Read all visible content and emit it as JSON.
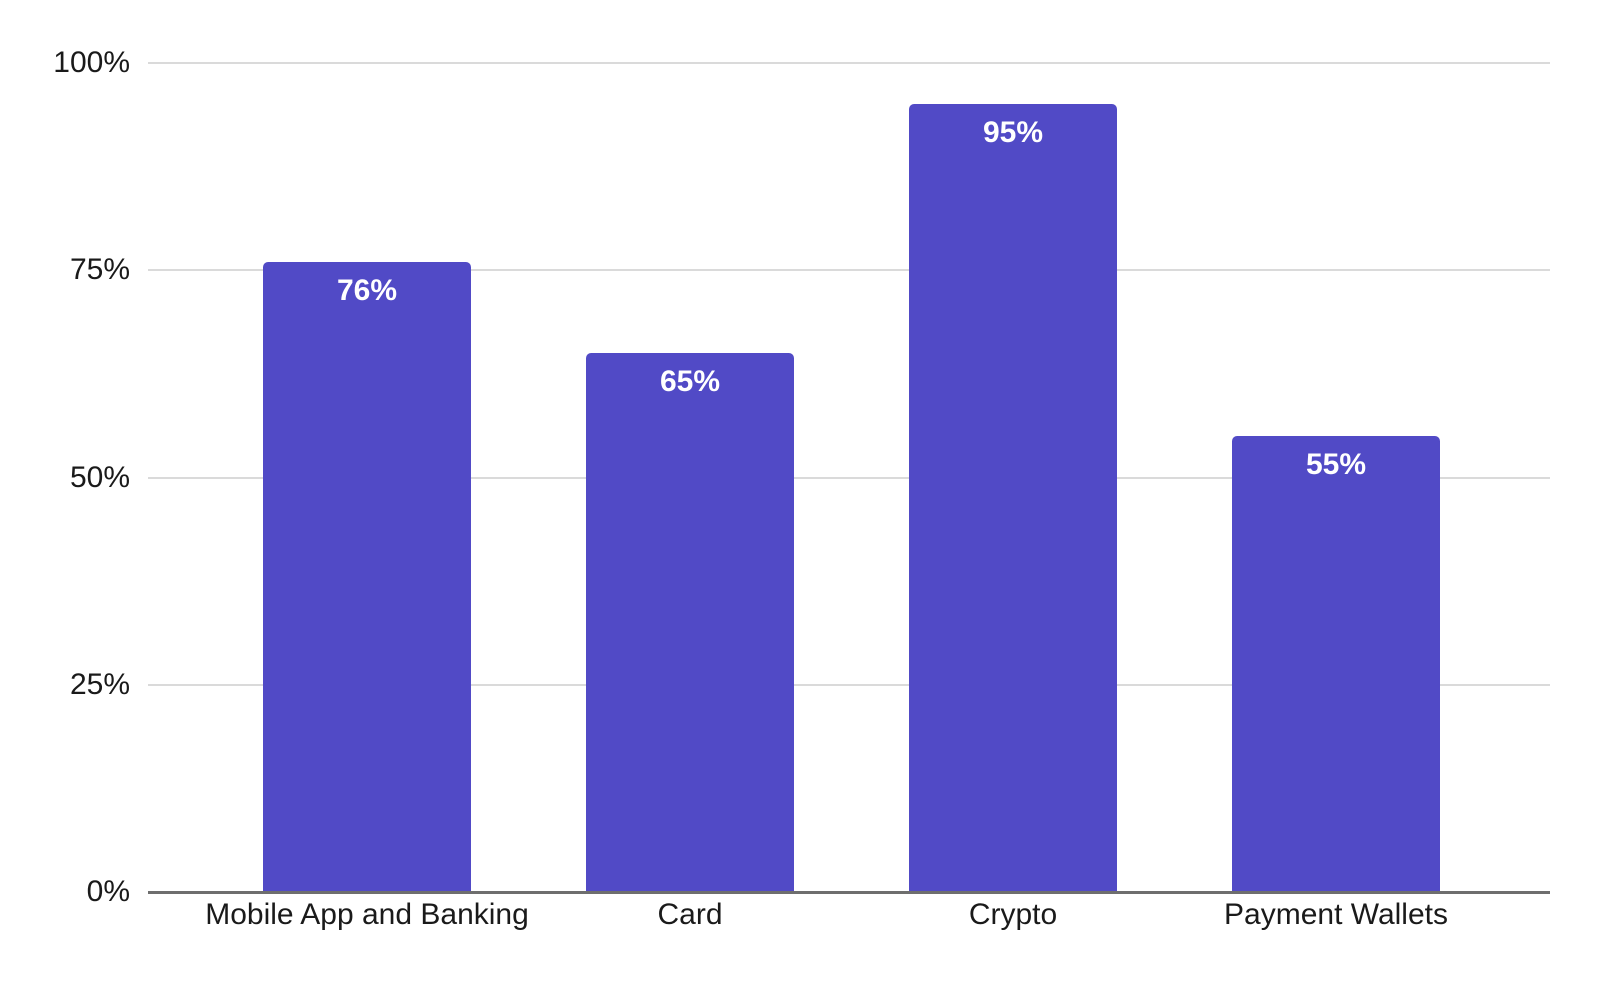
{
  "chart_data": {
    "type": "bar",
    "categories": [
      "Mobile App and Banking",
      "Card",
      "Crypto",
      "Payment Wallets"
    ],
    "values": [
      76,
      65,
      95,
      55
    ],
    "value_labels": [
      "76%",
      "65%",
      "95%",
      "55%"
    ],
    "title": "",
    "xlabel": "",
    "ylabel": "",
    "ylim": [
      0,
      100
    ],
    "yticks": [
      "0%",
      "25%",
      "50%",
      "75%",
      "100%"
    ],
    "grid": "horizontal-on",
    "legend": "none",
    "colors": {
      "bar": "#514AC6",
      "gridline": "#DADADA",
      "axis_line": "#6E6E6E",
      "tick_text": "#1A1A1A",
      "value_text": "#FFFFFF",
      "background": "#FFFFFF"
    }
  }
}
